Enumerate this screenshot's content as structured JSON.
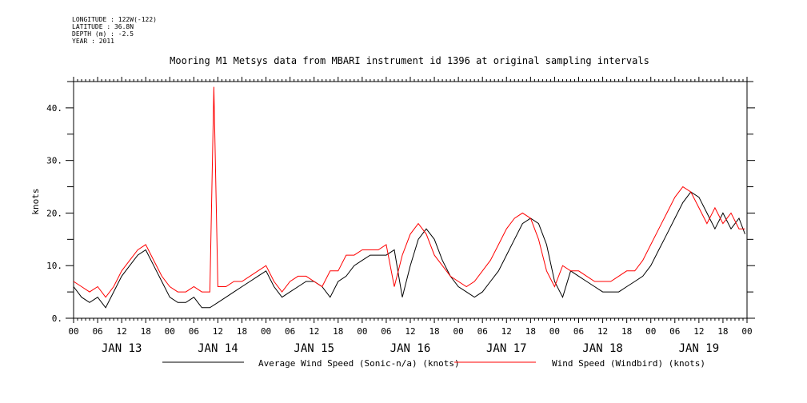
{
  "meta": {
    "longitude": "LONGITUDE : 122W(-122)",
    "latitude": "LATITUDE : 36.8N",
    "depth": "DEPTH (m) : -2.5",
    "year": "YEAR : 2011"
  },
  "chart_data": {
    "type": "line",
    "title": "Mooring M1 Metsys data from MBARI instrument id 1396 at original sampling intervals",
    "ylabel": "knots",
    "xlabel": "",
    "ylim": [
      0,
      45
    ],
    "y_ticks": [
      0,
      10,
      20,
      30,
      40
    ],
    "y_tick_labels": [
      "0.",
      "10.",
      "20.",
      "30.",
      "40."
    ],
    "x_range_hours": [
      0,
      168
    ],
    "hour_tick_labels": [
      "00",
      "06",
      "12",
      "18",
      "00",
      "06",
      "12",
      "18",
      "00",
      "06",
      "12",
      "18",
      "00",
      "06",
      "12",
      "18",
      "00",
      "06",
      "12",
      "18",
      "00",
      "06",
      "12",
      "18",
      "00",
      "06",
      "12",
      "18",
      "00"
    ],
    "day_labels": [
      "JAN 13",
      "JAN 14",
      "JAN 15",
      "JAN 16",
      "JAN 17",
      "JAN 18",
      "JAN 19"
    ],
    "legend_placement": "bottom",
    "colors": {
      "avg": "#000000",
      "windbird": "#ff0000"
    },
    "series": [
      {
        "name": "Average Wind Speed (Sonic-n/a) (knots)",
        "key": "avg",
        "x": [
          0,
          2,
          4,
          6,
          8,
          10,
          12,
          14,
          16,
          18,
          20,
          22,
          24,
          26,
          28,
          30,
          32,
          34,
          36,
          38,
          40,
          42,
          44,
          46,
          48,
          50,
          52,
          54,
          56,
          58,
          60,
          62,
          64,
          66,
          68,
          70,
          72,
          74,
          76,
          78,
          80,
          82,
          84,
          86,
          88,
          90,
          92,
          94,
          96,
          98,
          100,
          102,
          104,
          106,
          108,
          110,
          112,
          114,
          116,
          118,
          120,
          122,
          124,
          126,
          128,
          130,
          132,
          134,
          136,
          138,
          140,
          142,
          144,
          146,
          148,
          150,
          152,
          154,
          156,
          158,
          160,
          162,
          164,
          166,
          167.5
        ],
        "y": [
          6,
          4,
          3,
          4,
          2,
          5,
          8,
          10,
          12,
          13,
          10,
          7,
          4,
          3,
          3,
          4,
          2,
          2,
          3,
          4,
          5,
          6,
          7,
          8,
          9,
          6,
          4,
          5,
          6,
          7,
          7,
          6,
          4,
          7,
          8,
          10,
          11,
          12,
          12,
          12,
          13,
          4,
          10,
          15,
          17,
          15,
          11,
          8,
          6,
          5,
          4,
          5,
          7,
          9,
          12,
          15,
          18,
          19,
          18,
          14,
          7,
          4,
          9,
          8,
          7,
          6,
          5,
          5,
          5,
          6,
          7,
          8,
          10,
          13,
          16,
          19,
          22,
          24,
          23,
          20,
          17,
          20,
          17,
          19,
          16
        ]
      },
      {
        "name": "Wind Speed (Windbird) (knots)",
        "key": "windbird",
        "x": [
          0,
          2,
          4,
          6,
          8,
          10,
          12,
          14,
          16,
          18,
          20,
          22,
          24,
          26,
          28,
          30,
          32,
          34,
          35,
          36,
          38,
          40,
          42,
          44,
          46,
          48,
          50,
          52,
          54,
          56,
          58,
          60,
          62,
          64,
          66,
          68,
          70,
          72,
          74,
          76,
          78,
          80,
          82,
          84,
          86,
          88,
          90,
          92,
          94,
          96,
          98,
          100,
          102,
          104,
          106,
          108,
          110,
          112,
          114,
          116,
          118,
          120,
          122,
          124,
          126,
          128,
          130,
          132,
          134,
          136,
          138,
          140,
          142,
          144,
          146,
          148,
          150,
          152,
          154,
          156,
          158,
          160,
          162,
          164,
          166,
          167.5
        ],
        "y": [
          7,
          6,
          5,
          6,
          4,
          6,
          9,
          11,
          13,
          14,
          11,
          8,
          6,
          5,
          5,
          6,
          5,
          5,
          44,
          6,
          6,
          7,
          7,
          8,
          9,
          10,
          7,
          5,
          7,
          8,
          8,
          7,
          6,
          9,
          9,
          12,
          12,
          13,
          13,
          13,
          14,
          6,
          12,
          16,
          18,
          16,
          12,
          10,
          8,
          7,
          6,
          7,
          9,
          11,
          14,
          17,
          19,
          20,
          19,
          15,
          9,
          6,
          10,
          9,
          9,
          8,
          7,
          7,
          7,
          8,
          9,
          9,
          11,
          14,
          17,
          20,
          23,
          25,
          24,
          21,
          18,
          21,
          18,
          20,
          17,
          17
        ]
      }
    ]
  }
}
